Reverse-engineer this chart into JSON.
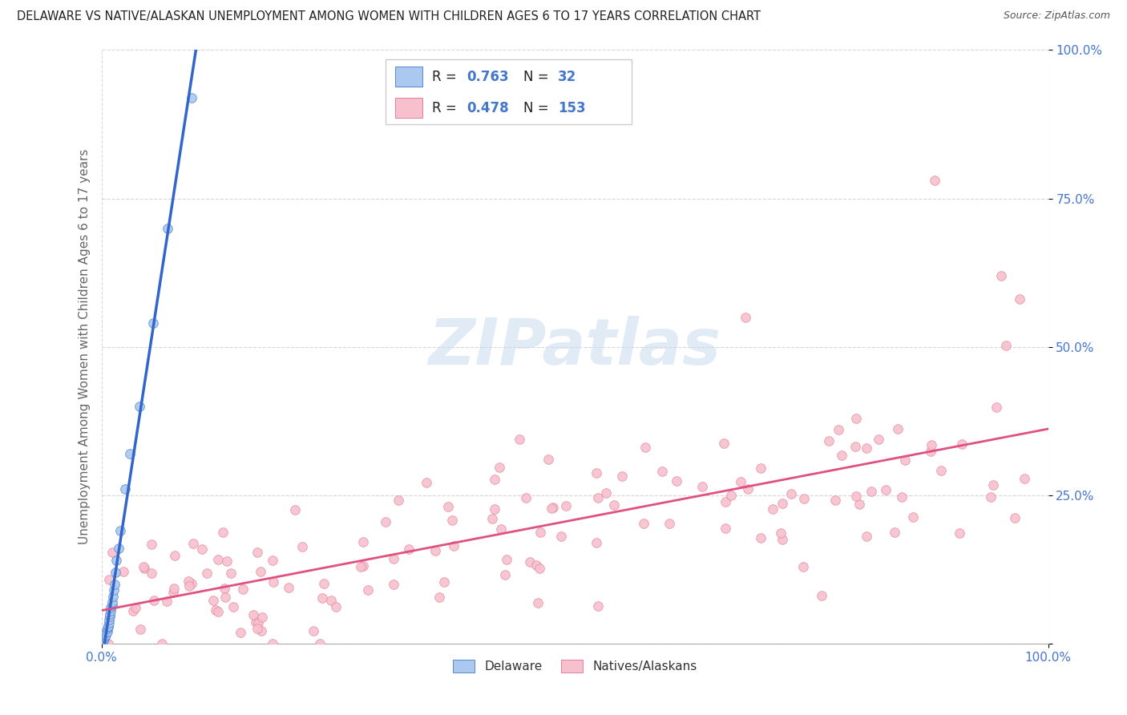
{
  "title": "DELAWARE VS NATIVE/ALASKAN UNEMPLOYMENT AMONG WOMEN WITH CHILDREN AGES 6 TO 17 YEARS CORRELATION CHART",
  "source": "Source: ZipAtlas.com",
  "ylabel": "Unemployment Among Women with Children Ages 6 to 17 years",
  "background_color": "#ffffff",
  "watermark": "ZIPatlas",
  "delaware_color": "#aac8f0",
  "delaware_edge_color": "#5588cc",
  "delaware_line_color": "#3366cc",
  "native_color": "#f8c0cc",
  "native_edge_color": "#e080a0",
  "native_line_color": "#e05080",
  "legend_R1": "0.763",
  "legend_N1": "32",
  "legend_R2": "0.478",
  "legend_N2": "153",
  "tick_color": "#4477cc",
  "grid_color": "#cccccc"
}
